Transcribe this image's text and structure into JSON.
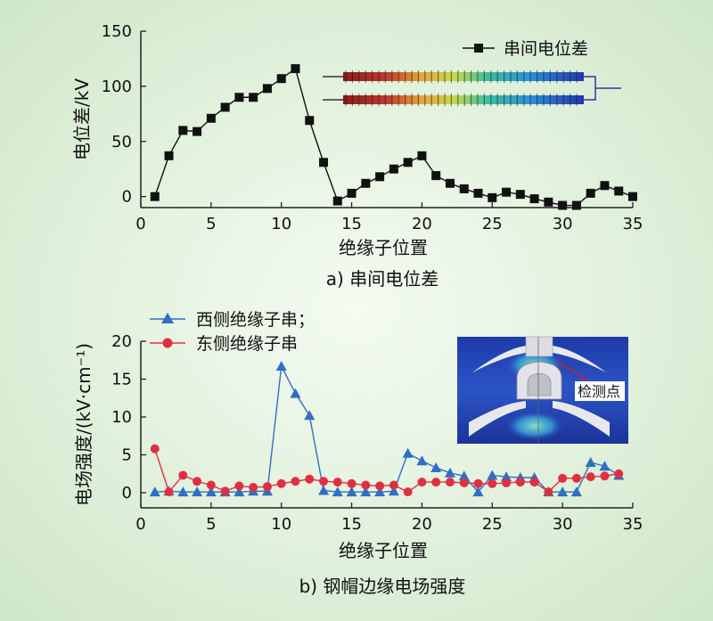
{
  "chart_data": [
    {
      "type": "line",
      "caption": "a) 串间电位差",
      "xlabel": "绝缘子位置",
      "ylabel": "电位差/kV",
      "xlim": [
        0,
        35
      ],
      "ylim": [
        -10,
        150
      ],
      "xticks": [
        0,
        5,
        10,
        15,
        20,
        25,
        30,
        35
      ],
      "yticks": [
        0,
        50,
        100,
        150
      ],
      "legend_position": "top-right",
      "series": [
        {
          "name": "串间电位差",
          "color": "#111111",
          "marker": "square",
          "x": [
            1,
            2,
            3,
            4,
            5,
            6,
            7,
            8,
            9,
            10,
            11,
            12,
            13,
            14,
            15,
            16,
            17,
            18,
            19,
            20,
            21,
            22,
            23,
            24,
            25,
            26,
            27,
            28,
            29,
            30,
            31,
            32,
            33,
            34,
            35
          ],
          "values": [
            0,
            37,
            60,
            59,
            71,
            81,
            90,
            90,
            98,
            107,
            116,
            69,
            31,
            -4,
            3,
            12,
            18,
            25,
            31,
            37,
            19,
            12,
            7,
            3,
            -1,
            4,
            2,
            -2,
            -5,
            -8,
            -8,
            3,
            10,
            5,
            0
          ]
        }
      ],
      "inset": "insulator-potential-color-map"
    },
    {
      "type": "line",
      "caption": "b) 钢帽边缘电场强度",
      "xlabel": "绝缘子位置",
      "ylabel": "电场强度/(kV·cm⁻¹)",
      "xlim": [
        0,
        35
      ],
      "ylim": [
        -2,
        20
      ],
      "xticks": [
        0,
        5,
        10,
        15,
        20,
        25,
        30,
        35
      ],
      "yticks": [
        0,
        5,
        10,
        15,
        20
      ],
      "legend_position": "top-left",
      "series": [
        {
          "name": "西侧绝缘子串；",
          "color": "#2f6fc4",
          "marker": "triangle",
          "x": [
            1,
            2,
            3,
            4,
            5,
            6,
            7,
            8,
            9,
            10,
            11,
            12,
            13,
            14,
            15,
            16,
            17,
            18,
            19,
            20,
            21,
            22,
            23,
            24,
            25,
            26,
            27,
            28,
            29,
            30,
            31,
            32,
            33,
            34
          ],
          "values": [
            0.1,
            0.2,
            0.1,
            0.1,
            0.1,
            0.1,
            0.1,
            0.2,
            0.2,
            16.7,
            13.1,
            10.2,
            0.3,
            0.1,
            0.1,
            0.1,
            0.1,
            0.2,
            5.2,
            4.2,
            3.3,
            2.6,
            2.2,
            0.1,
            2.3,
            2.1,
            2.0,
            2.0,
            0.1,
            0.1,
            0.1,
            4.0,
            3.5,
            2.3
          ]
        },
        {
          "name": "东侧绝缘子串",
          "color": "#e03040",
          "marker": "circle",
          "x": [
            1,
            2,
            3,
            4,
            5,
            6,
            7,
            8,
            9,
            10,
            11,
            12,
            13,
            14,
            15,
            16,
            17,
            18,
            19,
            20,
            21,
            22,
            23,
            24,
            25,
            26,
            27,
            28,
            29,
            30,
            31,
            32,
            33,
            34
          ],
          "values": [
            5.8,
            0.1,
            2.3,
            1.5,
            1.0,
            0.2,
            0.9,
            0.7,
            0.8,
            1.2,
            1.5,
            1.8,
            1.5,
            1.4,
            1.2,
            1.0,
            0.9,
            1.0,
            0.1,
            1.4,
            1.4,
            1.4,
            1.3,
            1.2,
            1.2,
            1.3,
            1.4,
            1.4,
            0.1,
            1.9,
            1.9,
            2.1,
            2.2,
            2.5
          ]
        }
      ],
      "inset": {
        "label": "检测点"
      }
    }
  ]
}
